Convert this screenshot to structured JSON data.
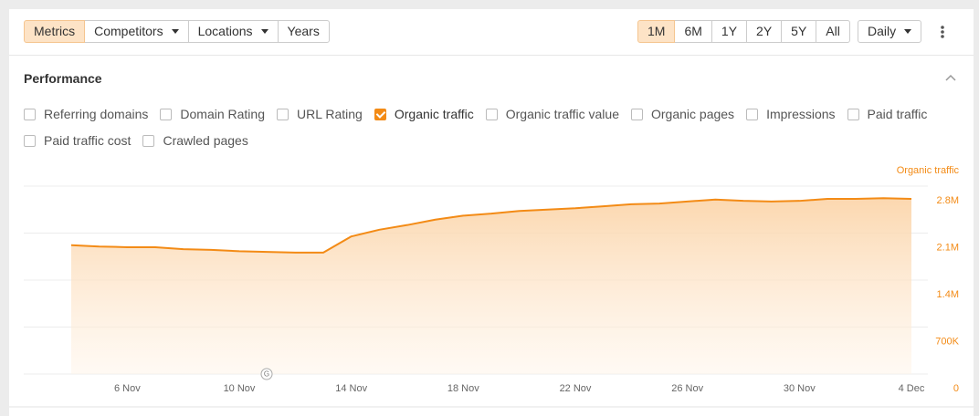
{
  "toolbar": {
    "views": [
      {
        "label": "Metrics",
        "active": true,
        "dropdown": false
      },
      {
        "label": "Competitors",
        "active": false,
        "dropdown": true
      },
      {
        "label": "Locations",
        "active": false,
        "dropdown": true
      },
      {
        "label": "Years",
        "active": false,
        "dropdown": false
      }
    ],
    "ranges": [
      {
        "label": "1M",
        "active": true
      },
      {
        "label": "6M",
        "active": false
      },
      {
        "label": "1Y",
        "active": false
      },
      {
        "label": "2Y",
        "active": false
      },
      {
        "label": "5Y",
        "active": false
      },
      {
        "label": "All",
        "active": false
      }
    ],
    "interval": "Daily"
  },
  "panel": {
    "title": "Performance",
    "metrics": [
      {
        "label": "Referring domains",
        "checked": false
      },
      {
        "label": "Domain Rating",
        "checked": false
      },
      {
        "label": "URL Rating",
        "checked": false
      },
      {
        "label": "Organic traffic",
        "checked": true
      },
      {
        "label": "Organic traffic value",
        "checked": false
      },
      {
        "label": "Organic pages",
        "checked": false
      },
      {
        "label": "Impressions",
        "checked": false
      },
      {
        "label": "Paid traffic",
        "checked": false
      },
      {
        "label": "Paid traffic cost",
        "checked": false
      },
      {
        "label": "Crawled pages",
        "checked": false
      }
    ]
  },
  "chart_data": {
    "type": "area",
    "y_axis_label": "Organic traffic",
    "event_marker": "G",
    "categories": [
      null,
      null,
      "6 Nov",
      null,
      null,
      null,
      "10 Nov",
      null,
      null,
      null,
      "14 Nov",
      null,
      null,
      null,
      "18 Nov",
      null,
      null,
      null,
      "22 Nov",
      null,
      null,
      null,
      "26 Nov",
      null,
      null,
      null,
      "30 Nov",
      null,
      null,
      null,
      "4 Dec"
    ],
    "series": [
      {
        "name": "Organic traffic",
        "color": "#f38b16",
        "values": [
          1920000,
          1900000,
          1890000,
          1890000,
          1860000,
          1850000,
          1830000,
          1820000,
          1810000,
          1810000,
          2050000,
          2150000,
          2220000,
          2300000,
          2360000,
          2390000,
          2430000,
          2450000,
          2470000,
          2500000,
          2530000,
          2540000,
          2570000,
          2600000,
          2580000,
          2570000,
          2580000,
          2610000,
          2610000,
          2620000,
          2610000
        ]
      }
    ],
    "ylim": [
      0,
      2800000
    ],
    "yticks": [
      0,
      {
        "value": 700000,
        "label": "700K"
      },
      {
        "value": 1400000,
        "label": "1.4M"
      },
      {
        "value": 2100000,
        "label": "2.1M"
      },
      {
        "value": 2800000,
        "label": "2.8M"
      }
    ],
    "grid": true
  }
}
